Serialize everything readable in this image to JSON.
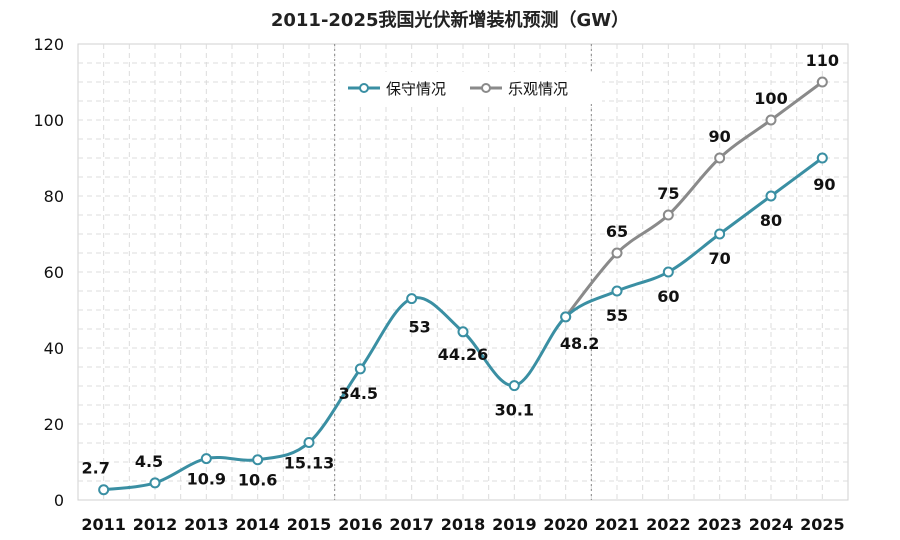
{
  "chart_data": {
    "type": "line",
    "title": "2011-2025我国光伏新增装机预测（GW）",
    "xlabel": "",
    "ylabel": "",
    "ylim": [
      0,
      120
    ],
    "yticks": [
      0,
      20,
      40,
      60,
      80,
      100,
      120
    ],
    "grid": true,
    "legend_position": "top-center",
    "x": [
      "2011",
      "2012",
      "2013",
      "2014",
      "2015",
      "2016",
      "2017",
      "2018",
      "2019",
      "2020",
      "2021",
      "2022",
      "2023",
      "2024",
      "2025"
    ],
    "series": [
      {
        "name": "保守情况",
        "color": "#3a8fa3",
        "x": [
          "2011",
          "2012",
          "2013",
          "2014",
          "2015",
          "2016",
          "2017",
          "2018",
          "2019",
          "2020",
          "2021",
          "2022",
          "2023",
          "2024",
          "2025"
        ],
        "values": [
          2.7,
          4.5,
          10.9,
          10.6,
          15.13,
          34.5,
          53,
          44.26,
          30.1,
          48.2,
          55,
          60,
          70,
          80,
          90
        ],
        "labels": [
          "2.7",
          "4.5",
          "10.9",
          "10.6",
          "15.13",
          "34.5",
          "53",
          "44.26",
          "30.1",
          "48.2",
          "55",
          "60",
          "70",
          "80",
          "90"
        ]
      },
      {
        "name": "乐观情况",
        "color": "#8a8a8a",
        "x": [
          "2020",
          "2021",
          "2022",
          "2023",
          "2024",
          "2025"
        ],
        "values": [
          48.2,
          65,
          75,
          90,
          100,
          110
        ],
        "labels": [
          "",
          "65",
          "75",
          "90",
          "100",
          "110"
        ]
      }
    ]
  }
}
